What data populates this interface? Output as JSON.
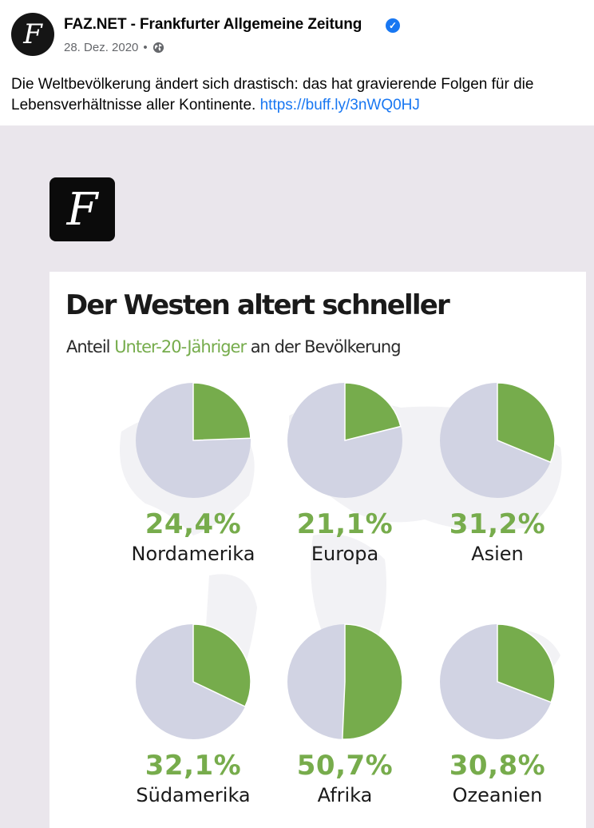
{
  "post": {
    "page_name": "FAZ.NET - Frankfurter Allgemeine Zeitung",
    "avatar_letter": "F",
    "verified_glyph": "✓",
    "date": "28. Dez. 2020",
    "separator": "•",
    "privacy_icon": "globe-icon",
    "text": "Die Weltbevölkerung ändert sich drastisch: das hat gravierende Folgen für die Lebensverhältnisse aller Kontinente. ",
    "link": "https://buff.ly/3nWQ0HJ"
  },
  "image": {
    "logo_letter": "F",
    "title": "Der Westen altert schneller",
    "subtitle_prefix": "Anteil ",
    "subtitle_highlight": "Unter-20-Jähriger",
    "subtitle_suffix": " an der Bevölkerung"
  },
  "colors": {
    "share": "#76ac4c",
    "rest": "#d1d3e3",
    "link": "#1877f2",
    "verified": "#1877f2"
  },
  "chart_data": {
    "type": "pie",
    "title": "Der Westen altert schneller",
    "subtitle": "Anteil Unter-20-Jähriger an der Bevölkerung",
    "series": [
      {
        "name": "Nordamerika",
        "value": 24.4,
        "label": "24,4%"
      },
      {
        "name": "Europa",
        "value": 21.1,
        "label": "21,1%"
      },
      {
        "name": "Asien",
        "value": 31.2,
        "label": "31,2%"
      },
      {
        "name": "Südamerika",
        "value": 32.1,
        "label": "32,1%"
      },
      {
        "name": "Afrika",
        "value": 50.7,
        "label": "50,7%"
      },
      {
        "name": "Ozeanien",
        "value": 30.8,
        "label": "30,8%"
      }
    ]
  }
}
